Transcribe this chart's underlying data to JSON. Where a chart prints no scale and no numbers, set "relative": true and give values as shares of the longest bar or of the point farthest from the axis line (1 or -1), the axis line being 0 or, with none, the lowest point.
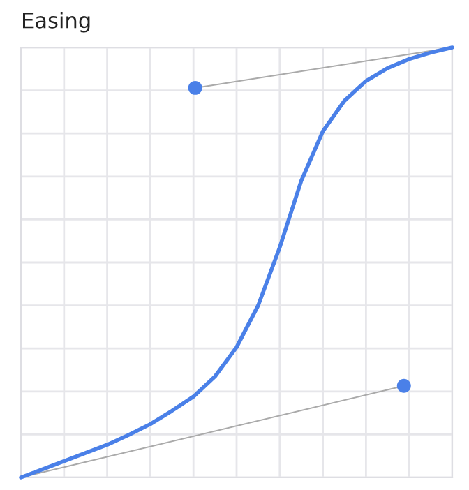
{
  "chart_data": {
    "type": "line",
    "title": "Easing",
    "relative": true,
    "grid": true,
    "marker": "none",
    "line_style": "solid",
    "categories": [
      null,
      null,
      null,
      null,
      null,
      null,
      null,
      null,
      null,
      null,
      null,
      null,
      null,
      null,
      null,
      null,
      null,
      null,
      null,
      null,
      null
    ],
    "series": [
      {
        "color": "#4a80e8",
        "values": [
          0,
          0.019,
          0.038,
          0.057,
          0.076,
          0.099,
          0.124,
          0.155,
          0.188,
          0.235,
          0.303,
          0.4,
          0.535,
          0.69,
          0.805,
          0.876,
          0.922,
          0.952,
          0.973,
          0.988,
          1
        ]
      }
    ]
  }
}
